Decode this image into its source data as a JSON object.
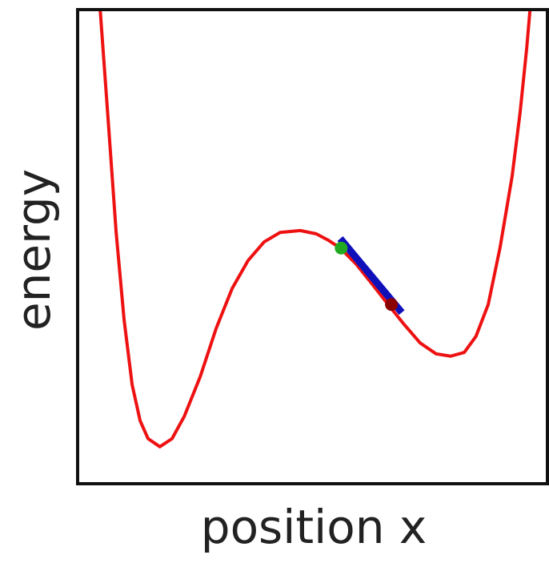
{
  "chart_data": {
    "type": "line",
    "xlabel": "position x",
    "ylabel": "energy",
    "xlim": [
      0,
      1
    ],
    "ylim": [
      0,
      1
    ],
    "series": [
      {
        "color": "#ee1111",
        "x": [
          0.048,
          0.065,
          0.082,
          0.099,
          0.116,
          0.133,
          0.15,
          0.175,
          0.201,
          0.227,
          0.261,
          0.295,
          0.329,
          0.363,
          0.397,
          0.431,
          0.474,
          0.508,
          0.533,
          0.559,
          0.593,
          0.627,
          0.661,
          0.695,
          0.729,
          0.763,
          0.794,
          0.823,
          0.848,
          0.874,
          0.899,
          0.925,
          0.942,
          0.956,
          0.963
        ],
        "values": [
          1.0,
          0.767,
          0.53,
          0.345,
          0.209,
          0.133,
          0.095,
          0.078,
          0.095,
          0.142,
          0.226,
          0.328,
          0.412,
          0.471,
          0.51,
          0.53,
          0.534,
          0.527,
          0.514,
          0.497,
          0.463,
          0.421,
          0.378,
          0.336,
          0.297,
          0.274,
          0.269,
          0.277,
          0.311,
          0.378,
          0.497,
          0.649,
          0.784,
          0.919,
          1.0
        ]
      },
      {
        "color": "#1010bb",
        "x": [
          0.559,
          0.69
        ],
        "values": [
          0.517,
          0.361
        ]
      }
    ],
    "points": [
      {
        "color": "#22aa22",
        "x": 0.561,
        "y": 0.497
      },
      {
        "color": "#8b0000",
        "x": 0.668,
        "y": 0.378
      }
    ]
  }
}
